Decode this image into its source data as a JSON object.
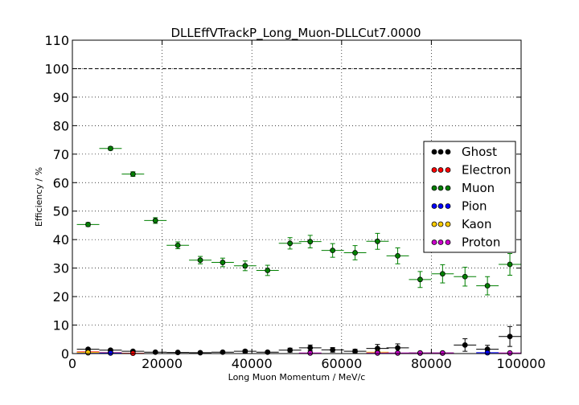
{
  "chart_data": {
    "type": "scatter",
    "title": "DLLEffVTrackP_Long_Muon-DLLCut7.0000",
    "xlabel": "Long Muon Momentum / MeV/c",
    "ylabel": "Efficiency / %",
    "xlim": [
      0,
      100000
    ],
    "ylim": [
      0,
      110
    ],
    "x_ticks": [
      "0",
      "20000",
      "40000",
      "60000",
      "80000",
      "100000"
    ],
    "y_ticks": [
      "0",
      "10",
      "20",
      "30",
      "40",
      "50",
      "60",
      "70",
      "80",
      "90",
      "100",
      "110"
    ],
    "grid": true,
    "reference_line": 100,
    "legend_position": "right",
    "series": [
      {
        "name": "Ghost",
        "color": "#000000",
        "x": [
          3500,
          8500,
          13500,
          18500,
          23500,
          28500,
          33500,
          38500,
          43500,
          48500,
          53000,
          58000,
          63000,
          68000,
          72500,
          77500,
          82500,
          87500,
          92500,
          97500
        ],
        "y": [
          1.5,
          1.2,
          0.8,
          0.5,
          0.4,
          0.3,
          0.5,
          0.8,
          0.5,
          1.2,
          2.0,
          1.3,
          0.8,
          1.8,
          2.0,
          0.2,
          0.2,
          3.0,
          1.5,
          6.0
        ],
        "err": [
          0.4,
          0.4,
          0.3,
          0.3,
          0.3,
          0.2,
          0.3,
          0.5,
          0.4,
          0.7,
          1.0,
          0.8,
          0.7,
          1.4,
          1.4,
          0.3,
          0.3,
          2.2,
          1.4,
          3.5
        ]
      },
      {
        "name": "Electron",
        "color": "#ff0000",
        "x": [
          3500,
          8500,
          13500
        ],
        "y": [
          0.6,
          0.3,
          0.1
        ],
        "err": [
          0.3,
          0.2,
          0.1
        ]
      },
      {
        "name": "Muon",
        "color": "#008000",
        "x": [
          3500,
          8500,
          13500,
          18500,
          23500,
          28500,
          33500,
          38500,
          43500,
          48500,
          53000,
          58000,
          63000,
          68000,
          72500,
          77500,
          82500,
          87500,
          92500,
          97500
        ],
        "y": [
          45.3,
          72.0,
          63.0,
          46.7,
          38.0,
          32.8,
          32.0,
          30.8,
          29.2,
          38.7,
          39.3,
          36.2,
          35.4,
          39.4,
          34.3,
          26.0,
          28.0,
          27.0,
          23.8,
          31.3
        ],
        "err": [
          0.7,
          0.6,
          0.8,
          1.0,
          1.2,
          1.3,
          1.5,
          1.7,
          1.8,
          2.0,
          2.2,
          2.4,
          2.5,
          2.8,
          2.8,
          2.8,
          3.2,
          3.3,
          3.2,
          3.8
        ]
      },
      {
        "name": "Pion",
        "color": "#0000ff",
        "x": [
          3500,
          8500,
          92500
        ],
        "y": [
          0.3,
          0.2,
          0.3
        ],
        "err": [
          0.2,
          0.2,
          0.5
        ]
      },
      {
        "name": "Kaon",
        "color": "#ffcc00",
        "x": [
          3500,
          68000
        ],
        "y": [
          0.4,
          0.5
        ],
        "err": [
          0.2,
          0.5
        ]
      },
      {
        "name": "Proton",
        "color": "#cc00cc",
        "x": [
          53000,
          68000,
          72500,
          77500,
          82500,
          97500
        ],
        "y": [
          0.2,
          0.2,
          0.2,
          0.2,
          0.2,
          0.2
        ],
        "err": [
          0.2,
          0.2,
          0.2,
          0.2,
          0.2,
          0.2
        ]
      }
    ]
  }
}
